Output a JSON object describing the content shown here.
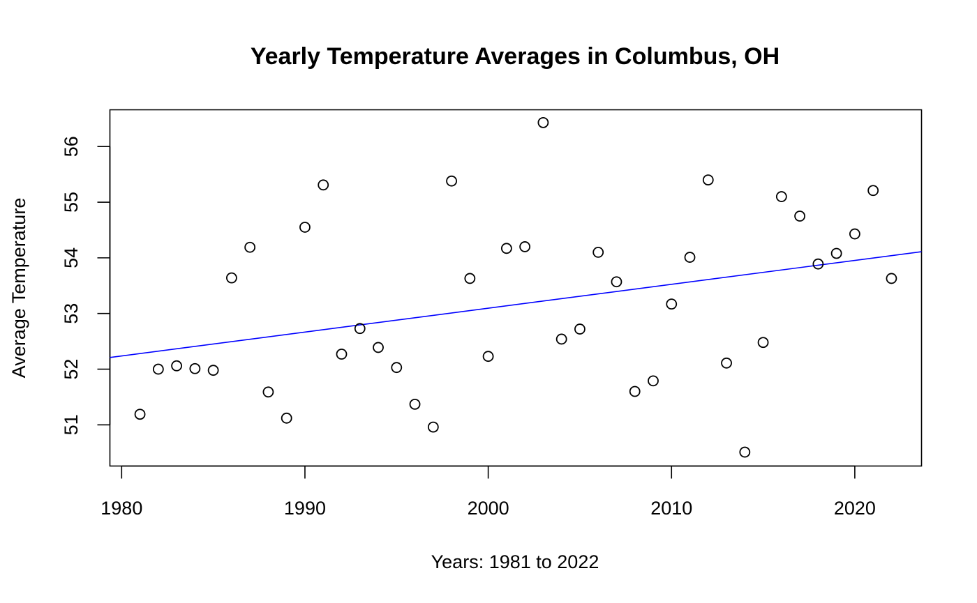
{
  "chart_data": {
    "type": "scatter",
    "title": "Yearly Temperature Averages in Columbus, OH",
    "xlabel": "Years: 1981 to 2022",
    "ylabel": "Average Temperature",
    "xlim": [
      1979.36,
      2023.64
    ],
    "ylim": [
      50.26,
      56.66
    ],
    "x_ticks": [
      1980,
      1990,
      2000,
      2010,
      2020
    ],
    "y_ticks": [
      51,
      52,
      53,
      54,
      55,
      56
    ],
    "grid": false,
    "legend": "none",
    "point_marker": "open-circle",
    "point_color": "#000000",
    "trend_color": "#0000ff",
    "trend_line": {
      "type": "linear-fit",
      "at_x_min": 52.21,
      "at_x_max": 54.11
    },
    "series": [
      {
        "x": [
          1981,
          1982,
          1983,
          1984,
          1985,
          1986,
          1987,
          1988,
          1989,
          1990,
          1991,
          1992,
          1993,
          1994,
          1995,
          1996,
          1997,
          1998,
          1999,
          2000,
          2001,
          2002,
          2003,
          2004,
          2005,
          2006,
          2007,
          2008,
          2009,
          2010,
          2011,
          2012,
          2013,
          2014,
          2015,
          2016,
          2017,
          2018,
          2019,
          2020,
          2021,
          2022
        ],
        "y": [
          51.19,
          52.0,
          52.06,
          52.01,
          51.98,
          53.64,
          54.19,
          51.59,
          51.12,
          54.55,
          55.31,
          52.27,
          52.73,
          52.39,
          52.03,
          51.37,
          50.96,
          55.38,
          53.63,
          52.23,
          54.17,
          54.2,
          56.43,
          52.54,
          52.72,
          54.1,
          53.57,
          51.6,
          51.79,
          53.17,
          54.01,
          55.4,
          52.11,
          50.51,
          52.48,
          55.1,
          54.75,
          53.89,
          54.08,
          54.43,
          55.21,
          53.63
        ]
      }
    ]
  }
}
